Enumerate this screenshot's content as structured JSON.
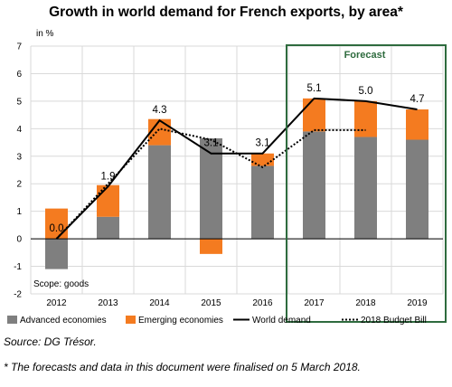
{
  "chart_data": {
    "type": "bar",
    "title": "Growth in world demand for French exports, by area*",
    "unit_label": "in %",
    "scope_label": "Scope: goods",
    "forecast_label": "Forecast",
    "categories": [
      "2012",
      "2013",
      "2014",
      "2015",
      "2016",
      "2017",
      "2018",
      "2019"
    ],
    "ylim": [
      -2,
      7
    ],
    "yticks": [
      -2,
      -1,
      0,
      1,
      2,
      3,
      4,
      5,
      6,
      7
    ],
    "grid": true,
    "legend_position": "bottom",
    "forecast_categories": [
      "2017",
      "2018",
      "2019"
    ],
    "series": [
      {
        "name": "Advanced economies",
        "kind": "bar",
        "color": "#7f7f7f",
        "values": [
          -1.1,
          0.8,
          3.4,
          3.65,
          2.65,
          3.9,
          3.7,
          3.6
        ]
      },
      {
        "name": "Emerging economies",
        "kind": "bar",
        "color": "#f47b20",
        "values": [
          1.1,
          1.15,
          0.95,
          -0.55,
          0.45,
          1.2,
          1.3,
          1.1
        ]
      },
      {
        "name": "World demand",
        "kind": "line",
        "style": "solid",
        "color": "#000000",
        "values": [
          0.0,
          1.9,
          4.3,
          3.1,
          3.1,
          5.1,
          5.0,
          4.7
        ]
      },
      {
        "name": "2018 Budget Bill",
        "kind": "line",
        "style": "dotted",
        "color": "#000000",
        "values": [
          0.0,
          2.0,
          4.0,
          3.6,
          2.6,
          3.95,
          3.95,
          null
        ]
      }
    ],
    "data_labels": [
      "0.0",
      "1.9",
      "4.3",
      "3.1",
      "3.1",
      "5.1",
      "5.0",
      "4.7"
    ]
  },
  "source": "Source: DG Trésor.",
  "footnote": "* The forecasts and data in this document were finalised on 5 March 2018."
}
